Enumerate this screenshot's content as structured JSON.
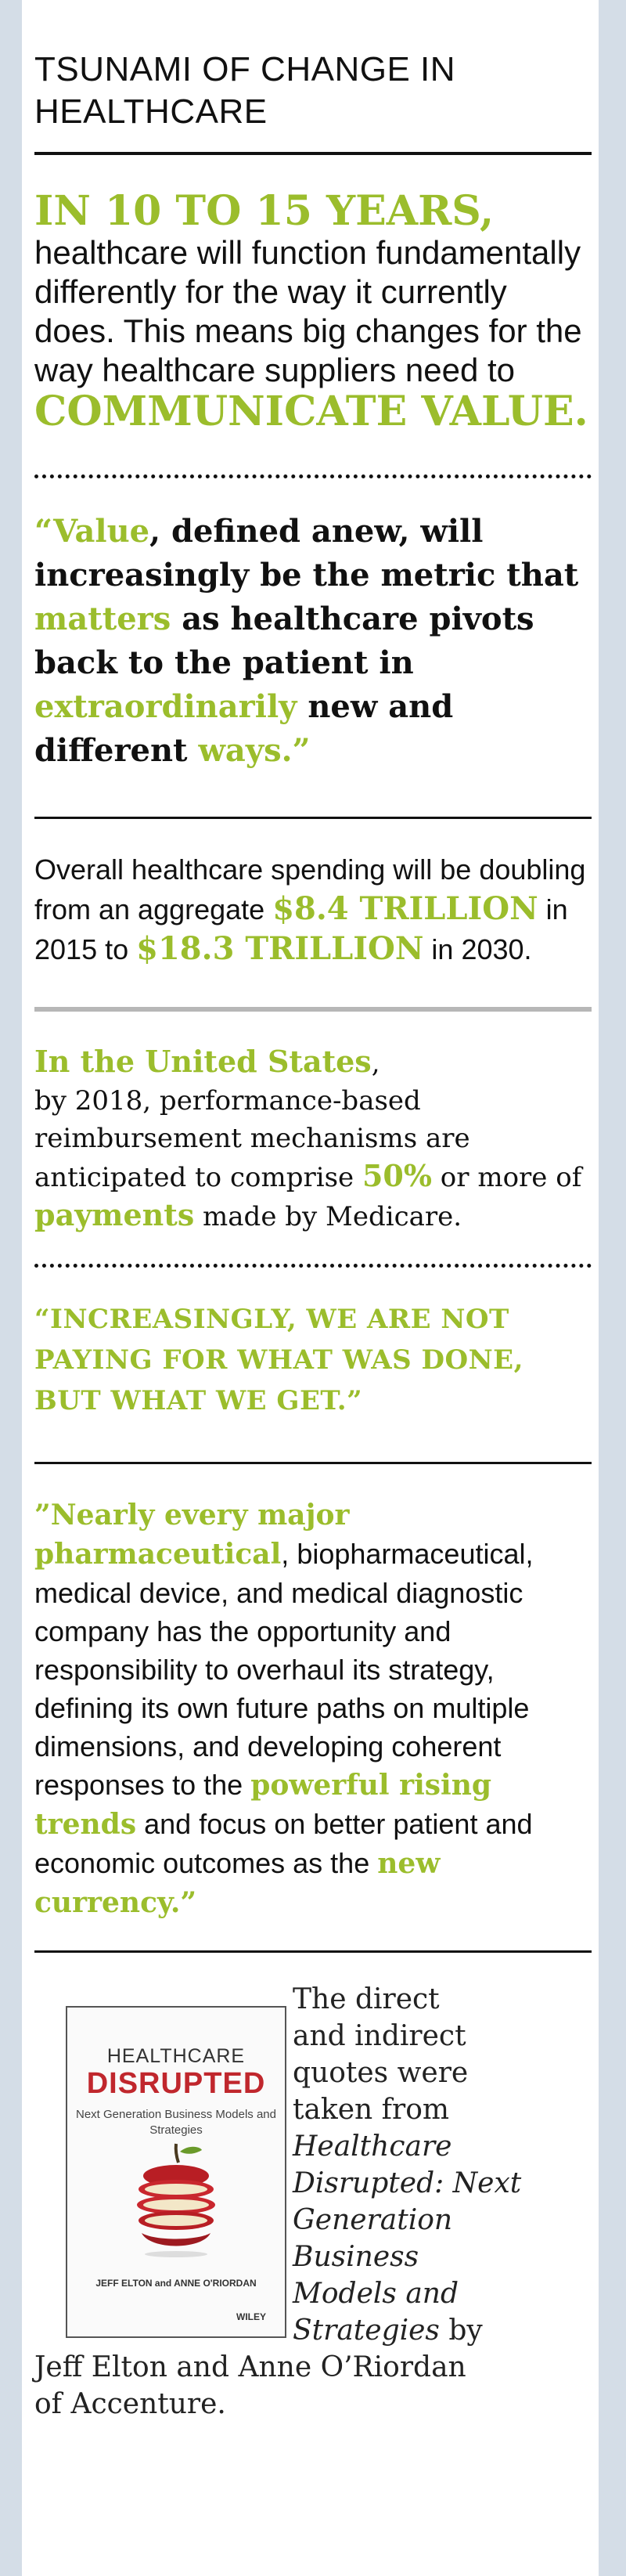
{
  "header": {
    "title_line1": "TSUNAMI OF CHANGE IN",
    "title_line2": "HEALTHCARE"
  },
  "intro": {
    "lead": "IN 10 TO 15 YEARS,",
    "text": "healthcare will function fundamentally differently for the way it currently does. This means big changes for the way healthcare suppliers need to",
    "emph": "COMMUNICATE VALUE."
  },
  "quote1": {
    "open": "“",
    "w_value": "Value",
    "t1": ", defined anew, will increasingly be the metric that",
    "w_matters": "matters",
    "t2": "as healthcare pivots back to the patient in",
    "w_extra": "extraordinarily",
    "t3": "new and different",
    "w_ways": "ways.”"
  },
  "spending": {
    "t1": "Overall healthcare spending will be doubling from an aggregate",
    "v1": "$8.4 TRILLION",
    "t2": "in 2015 to",
    "v2": "$18.3 TRILLION",
    "t3": "in 2030."
  },
  "us": {
    "lead": "In the United States",
    "comma": ",",
    "t1": "by 2018, performance-based reimbursement mechanisms are anticipated to comprise",
    "pct": "50%",
    "t2": "or more of",
    "payments": "payments",
    "t3": "made by Medicare."
  },
  "quote2": {
    "text": "“INCREASINGLY, WE ARE NOT PAYING FOR WHAT WAS DONE, BUT WHAT WE GET.”"
  },
  "pharma": {
    "lead": "”Nearly every major pharmaceutical",
    "comma": ",",
    "t1": "biopharmaceutical, medical device, and medical diagnostic company has the opportunity and responsibility to overhaul its strategy, defining its own future paths on multiple dimensions, and developing coherent responses to the",
    "trends": "powerful rising trends",
    "t2": "and focus on better patient and economic outcomes as the",
    "currency": "new currency.”"
  },
  "book": {
    "title1": "HEALTHCARE",
    "title2": "DISRUPTED",
    "subtitle": "Next Generation Business Models and Strategies",
    "authors": "JEFF ELTON and ANNE O'RIORDAN",
    "publisher": "WILEY"
  },
  "credit": {
    "l1": "The direct",
    "l2": "and indirect",
    "l3": "quotes were",
    "l4": "taken from",
    "i1": "Healthcare",
    "i2": "Disrupted: Next",
    "i3": "Generation",
    "i4": "Business",
    "i5": "Models and",
    "i6": "Strategies",
    "by": "by",
    "l5": "Jeff Elton and Anne O’Riordan",
    "l6": "of Accenture."
  },
  "colors": {
    "accent": "#9bbd2c",
    "sidebar": "#d4dde7",
    "title_red": "#c0272d"
  }
}
